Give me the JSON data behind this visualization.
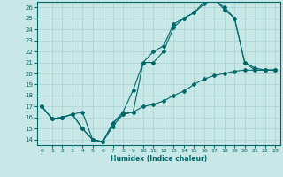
{
  "title": "",
  "xlabel": "Humidex (Indice chaleur)",
  "background_color": "#c8e8e8",
  "grid_color": "#a8d0d0",
  "line_color": "#006868",
  "xlim": [
    -0.5,
    23.5
  ],
  "ylim": [
    13.5,
    26.5
  ],
  "yticks": [
    14,
    15,
    16,
    17,
    18,
    19,
    20,
    21,
    22,
    23,
    24,
    25,
    26
  ],
  "xticks": [
    0,
    1,
    2,
    3,
    4,
    5,
    6,
    7,
    8,
    9,
    10,
    11,
    12,
    13,
    14,
    15,
    16,
    17,
    18,
    19,
    20,
    21,
    22,
    23
  ],
  "curve1_x": [
    0,
    1,
    2,
    3,
    4,
    5,
    6,
    7,
    8,
    9,
    10,
    11,
    12,
    13,
    14,
    15,
    16,
    17,
    18,
    19,
    20,
    21,
    22,
    23
  ],
  "curve1_y": [
    17.0,
    15.9,
    16.0,
    16.3,
    15.0,
    14.0,
    13.8,
    15.2,
    16.3,
    16.5,
    17.0,
    17.2,
    17.5,
    18.0,
    18.4,
    19.0,
    19.5,
    19.8,
    20.0,
    20.2,
    20.3,
    20.3,
    20.3,
    20.3
  ],
  "curve2_x": [
    0,
    1,
    2,
    3,
    4,
    5,
    6,
    7,
    8,
    9,
    10,
    11,
    12,
    13,
    14,
    15,
    16,
    17,
    18,
    19,
    20,
    21,
    22,
    23
  ],
  "curve2_y": [
    17.0,
    15.9,
    16.0,
    16.3,
    16.5,
    14.0,
    13.8,
    15.5,
    16.5,
    18.5,
    21.0,
    22.0,
    22.5,
    24.5,
    25.0,
    25.5,
    26.5,
    26.7,
    26.0,
    25.0,
    21.0,
    20.5,
    20.3,
    20.3
  ],
  "curve3_x": [
    0,
    1,
    2,
    3,
    4,
    5,
    6,
    7,
    8,
    9,
    10,
    11,
    12,
    13,
    14,
    15,
    16,
    17,
    18,
    19,
    20,
    21,
    22,
    23
  ],
  "curve3_y": [
    17.0,
    15.9,
    16.0,
    16.3,
    15.0,
    14.0,
    13.8,
    15.5,
    16.3,
    16.5,
    21.0,
    21.0,
    22.0,
    24.2,
    25.0,
    25.5,
    26.3,
    26.7,
    25.8,
    25.0,
    21.0,
    20.3,
    20.3,
    20.3
  ],
  "ytick_fontsize": 5,
  "xtick_fontsize": 4.5,
  "xlabel_fontsize": 5.5
}
